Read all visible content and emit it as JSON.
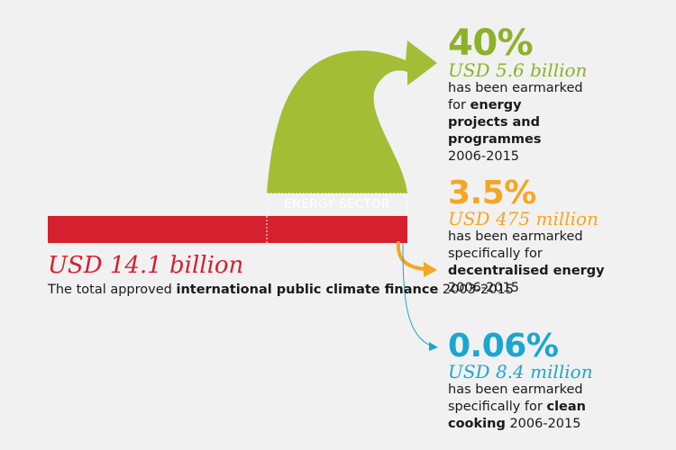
{
  "colors": {
    "red": "#d52030",
    "green": "#a3be34",
    "orange": "#f5a623",
    "blue": "#1ba6d1"
  },
  "sector_label": "ENERGY SECTOR",
  "total": {
    "amount": "USD 14.1 billion",
    "desc_pre": "The total approved ",
    "desc_bold": "international public climate finance",
    "desc_post": " 2003-2015"
  },
  "flows": [
    {
      "id": "energy",
      "percent": "40%",
      "amount": "USD 5.6 billion",
      "line1": "has been earmarked",
      "desc_pre": "for ",
      "desc_bold": "energy projects and programmes",
      "years": "2006-2015"
    },
    {
      "id": "decentralised",
      "percent": "3.5%",
      "amount": "USD 475 million",
      "line1": "has been earmarked",
      "desc_pre": "specifically for ",
      "desc_bold": "decentralised energy",
      "years": "2006-2015"
    },
    {
      "id": "cooking",
      "percent": "0.06%",
      "amount": "USD 8.4 million",
      "line1": "has been earmarked",
      "desc_pre": "specifically for ",
      "desc_bold": "clean cooking",
      "years": "2006-2015"
    }
  ]
}
